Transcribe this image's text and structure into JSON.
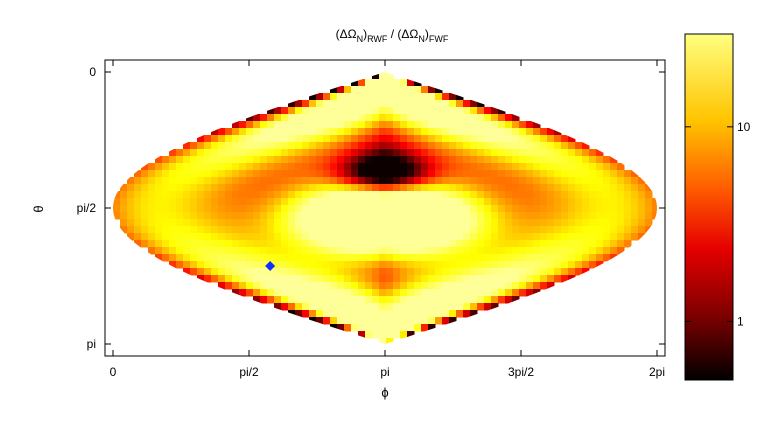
{
  "chart_data": {
    "type": "heatmap",
    "title": {
      "prefix": "(ΔΩ",
      "sub1": "N",
      "mid1": ")",
      "sub2": "RWF",
      "mid2": " / (ΔΩ",
      "sub3": "N",
      "mid3": ")",
      "sub4": "FWF"
    },
    "xlabel": "ϕ",
    "ylabel": "θ",
    "x_ticks": [
      "0",
      "pi/2",
      "pi",
      "3pi/2",
      "2pi"
    ],
    "y_ticks": [
      "0",
      "pi/2",
      "pi"
    ],
    "xlim": [
      0,
      6.2832
    ],
    "ylim": [
      0,
      3.1416
    ],
    "projection": "sinusoidal (equal-area sky map)",
    "colorbar": {
      "scale": "log",
      "range": [
        0.5,
        30
      ],
      "tick_labels": [
        "1",
        "10"
      ],
      "tick_values": [
        1,
        10
      ],
      "colormap": "hot"
    },
    "marker": {
      "phi": 1.45,
      "theta": 2.24,
      "color": "#1030ff",
      "shape": "diamond"
    }
  }
}
